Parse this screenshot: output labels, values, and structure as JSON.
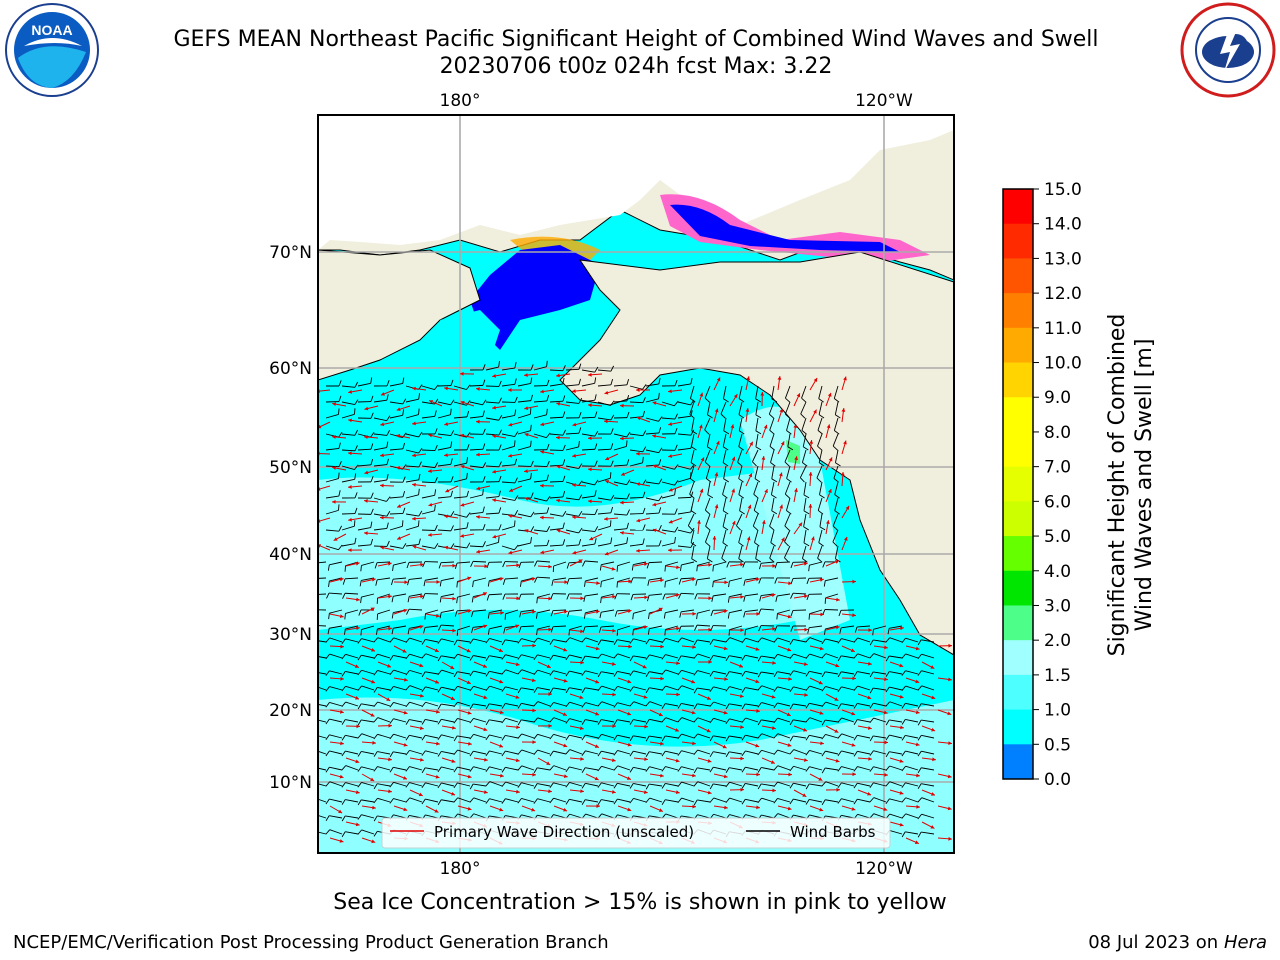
{
  "title_line1": "GEFS MEAN Northeast Pacific Significant Height of Combined Wind Waves and Swell",
  "title_line2": "20230706 t00z 024h fcst   Max: 3.22",
  "axes": {
    "top_lon_labels": [
      "180°",
      "120°W"
    ],
    "bottom_lon_labels": [
      "180°",
      "120°W"
    ],
    "lat_labels": [
      "70°N",
      "60°N",
      "50°N",
      "40°N",
      "30°N",
      "20°N",
      "10°N"
    ]
  },
  "legend": {
    "wave_label": "Primary Wave Direction (unscaled)",
    "barb_label": "Wind Barbs"
  },
  "colorbar": {
    "label_line1": "Significant Height of Combined",
    "label_line2": "Wind Waves and Swell [m]",
    "ticks": [
      "15.0",
      "14.0",
      "13.0",
      "12.0",
      "11.0",
      "10.0",
      "9.0",
      "8.0",
      "7.0",
      "6.0",
      "5.0",
      "4.0",
      "3.0",
      "2.0",
      "1.5",
      "1.0",
      "0.5",
      "0.0"
    ],
    "colors": [
      "#ff0000",
      "#ff2a00",
      "#ff5500",
      "#ff8000",
      "#ffaa00",
      "#ffd400",
      "#ffff00",
      "#ffff00",
      "#e6ff00",
      "#ccff00",
      "#66ff00",
      "#00e600",
      "#4dff88",
      "#a0ffff",
      "#4dffff",
      "#00ffff",
      "#0080ff",
      "#0000ff"
    ]
  },
  "caption": "Sea Ice Concentration > 15% is shown in pink to yellow",
  "footer_left": "NCEP/EMC/Verification Post Processing Product Generation Branch",
  "footer_date": "08 Jul 2023 on",
  "footer_host": "Hera",
  "colors": {
    "land": "#f0eedc",
    "ocean_low": "#00ffff",
    "ocean_mid": "#a0ffff",
    "wave_arrow": "#e00000",
    "ice_pink": "#ff66cc",
    "ice_blue": "#0000ff"
  }
}
